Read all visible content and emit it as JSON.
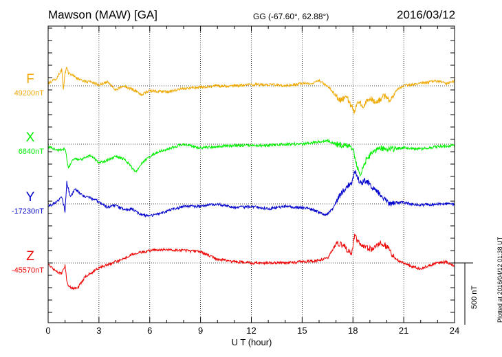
{
  "header": {
    "station": "Mawson (MAW)  [GA]",
    "coords": "GG (-67.60°,  62.88°)",
    "date": "2016/03/12"
  },
  "plotted_note": "Plotted at 2016/04/12 01:38 UT",
  "chart_data": {
    "type": "line",
    "xlabel": "U T (hour)",
    "xlim": [
      0,
      24
    ],
    "xticks": [
      0,
      3,
      6,
      9,
      12,
      15,
      18,
      21,
      24
    ],
    "scale_bar": {
      "label": "500 nT",
      "value_nT": 500
    },
    "series": [
      {
        "name": "F",
        "baseline_label": "49200nT",
        "baseline_nT": 49200,
        "color": "#f0a800",
        "x": [
          0,
          0.5,
          0.8,
          0.9,
          1.0,
          1.1,
          1.2,
          1.5,
          2,
          2.5,
          3,
          3.5,
          4,
          4.5,
          5,
          5.5,
          6,
          7,
          8,
          9,
          10,
          11,
          12,
          13,
          14,
          15,
          15.5,
          16,
          16.5,
          17,
          17.3,
          17.6,
          17.9,
          18.1,
          18.3,
          18.6,
          19,
          19.4,
          19.8,
          20.2,
          20.6,
          21,
          22,
          23,
          23.5,
          24
        ],
        "y": [
          49220,
          49260,
          49330,
          49180,
          49300,
          49350,
          49300,
          49280,
          49240,
          49230,
          49210,
          49230,
          49170,
          49200,
          49170,
          49130,
          49160,
          49150,
          49180,
          49190,
          49200,
          49200,
          49210,
          49210,
          49200,
          49220,
          49220,
          49240,
          49200,
          49120,
          49080,
          49110,
          49040,
          48990,
          49070,
          49040,
          49100,
          49060,
          49120,
          49080,
          49170,
          49200,
          49220,
          49240,
          49220,
          49240
        ]
      },
      {
        "name": "X",
        "baseline_label": "6840nT",
        "baseline_nT": 6840,
        "color": "#00ee00",
        "x": [
          0,
          0.5,
          1,
          1.2,
          1.5,
          2,
          2.5,
          3,
          3.5,
          4,
          4.5,
          5,
          5.2,
          5.5,
          6,
          6.5,
          7,
          8,
          9,
          10,
          11,
          12,
          13,
          14,
          15,
          16,
          16.5,
          17,
          17.5,
          18,
          18.2,
          18.4,
          18.6,
          18.8,
          19.2,
          19.6,
          20,
          21,
          22,
          23,
          24
        ],
        "y": [
          6820,
          6790,
          6800,
          6650,
          6720,
          6720,
          6750,
          6690,
          6710,
          6740,
          6720,
          6640,
          6620,
          6680,
          6740,
          6780,
          6800,
          6840,
          6810,
          6820,
          6830,
          6830,
          6830,
          6840,
          6840,
          6860,
          6870,
          6840,
          6830,
          6810,
          6680,
          6590,
          6640,
          6720,
          6780,
          6810,
          6800,
          6810,
          6800,
          6820,
          6830
        ]
      },
      {
        "name": "Y",
        "baseline_label": "-17230nT",
        "baseline_nT": -17230,
        "color": "#0000cc",
        "x": [
          0,
          0.5,
          0.8,
          1.0,
          1.1,
          1.3,
          1.6,
          2,
          3,
          3.5,
          4,
          4.5,
          5,
          5.5,
          6,
          7,
          8,
          9,
          10,
          11,
          12,
          13,
          14,
          15,
          15.5,
          16,
          16.4,
          16.8,
          17.2,
          17.6,
          17.9,
          18.1,
          18.4,
          18.8,
          19.3,
          19.8,
          20.2,
          20.6,
          21,
          22,
          23,
          24
        ],
        "y": [
          -17250,
          -17220,
          -17170,
          -17290,
          -17050,
          -17170,
          -17110,
          -17160,
          -17210,
          -17260,
          -17240,
          -17280,
          -17270,
          -17320,
          -17330,
          -17290,
          -17250,
          -17250,
          -17230,
          -17260,
          -17250,
          -17270,
          -17250,
          -17260,
          -17270,
          -17300,
          -17320,
          -17270,
          -17170,
          -17090,
          -17070,
          -16970,
          -17060,
          -17040,
          -17120,
          -17180,
          -17230,
          -17220,
          -17220,
          -17240,
          -17230,
          -17230
        ]
      },
      {
        "name": "Z",
        "baseline_label": "-45570nT",
        "baseline_nT": -45570,
        "color": "#ee0000",
        "x": [
          0,
          0.5,
          0.8,
          1.0,
          1.1,
          1.2,
          1.5,
          1.8,
          2.2,
          3,
          4,
          5,
          6,
          7,
          8,
          9,
          10,
          11,
          12,
          13,
          14,
          15,
          16,
          16.5,
          17,
          17.3,
          17.6,
          17.9,
          18.1,
          18.4,
          18.8,
          19.2,
          19.6,
          20,
          20.5,
          21,
          21.5,
          22,
          22.5,
          23,
          23.5,
          24
        ],
        "y": [
          -45580,
          -45640,
          -45660,
          -45590,
          -45720,
          -45760,
          -45780,
          -45760,
          -45680,
          -45610,
          -45560,
          -45500,
          -45470,
          -45460,
          -45470,
          -45480,
          -45540,
          -45560,
          -45570,
          -45570,
          -45570,
          -45560,
          -45550,
          -45530,
          -45420,
          -45420,
          -45450,
          -45500,
          -45350,
          -45420,
          -45450,
          -45460,
          -45400,
          -45440,
          -45540,
          -45570,
          -45600,
          -45620,
          -45590,
          -45570,
          -45560,
          -45600
        ]
      }
    ]
  }
}
